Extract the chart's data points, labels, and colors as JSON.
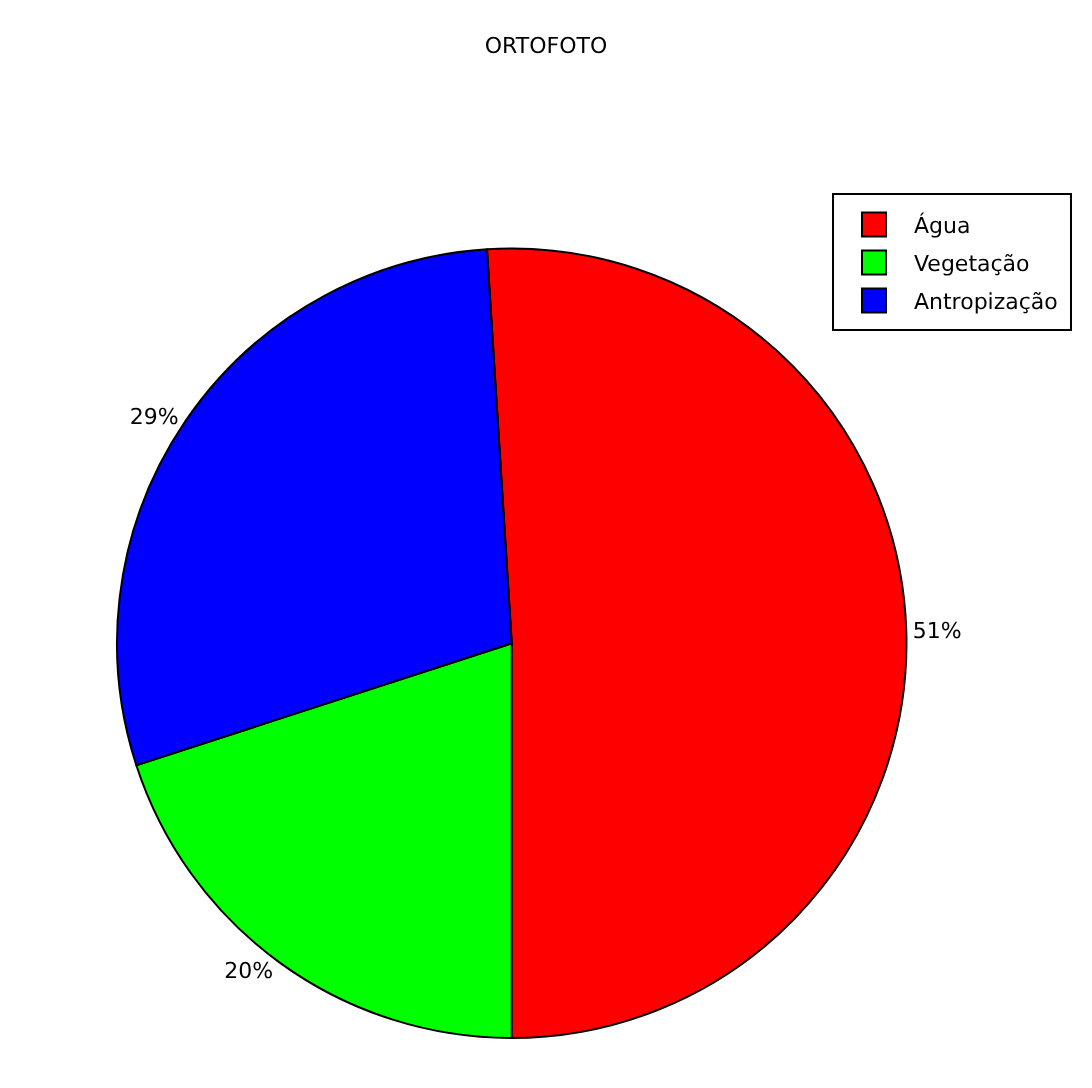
{
  "chart_data": {
    "type": "pie",
    "title": "ORTOFOTO",
    "categories": [
      "Água",
      "Vegetação",
      "Antropização"
    ],
    "values": [
      51,
      20,
      29
    ],
    "colors": [
      "#ff0000",
      "#00ff00",
      "#0000ff"
    ],
    "value_labels": [
      "51%",
      "20%",
      "29%"
    ],
    "legend": "top right"
  }
}
